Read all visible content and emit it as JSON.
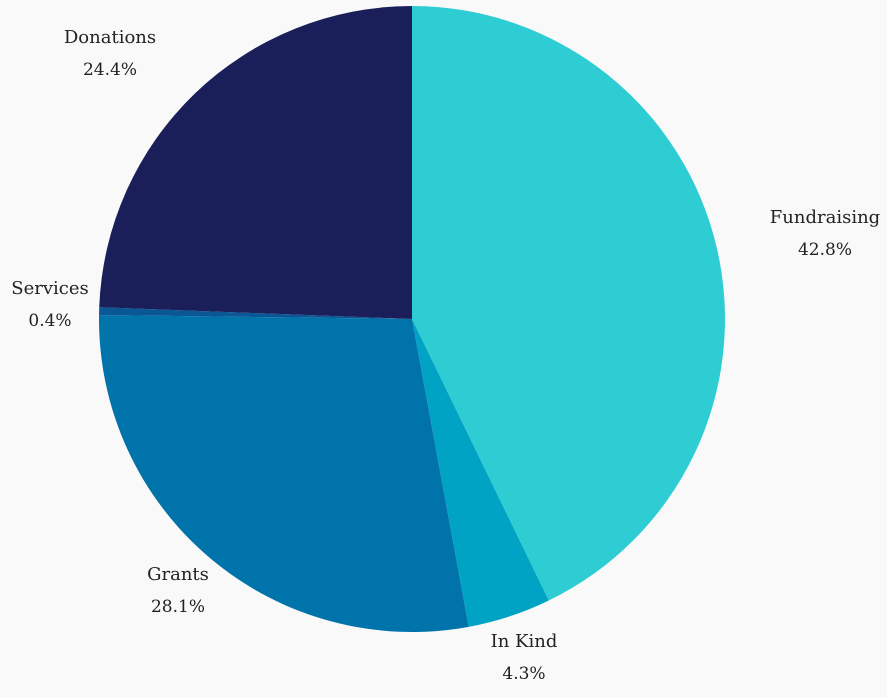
{
  "chart_data": {
    "type": "pie",
    "slices": [
      {
        "label": "Fundraising",
        "value": 42.8,
        "percent_label": "42.8%",
        "color": "#2ecdd4"
      },
      {
        "label": "In Kind",
        "value": 4.3,
        "percent_label": "4.3%",
        "color": "#00a3c4"
      },
      {
        "label": "Grants",
        "value": 28.1,
        "percent_label": "28.1%",
        "color": "#0073aa"
      },
      {
        "label": "Services",
        "value": 0.4,
        "percent_label": "0.4%",
        "color": "#0a5796"
      },
      {
        "label": "Donations",
        "value": 24.4,
        "percent_label": "24.4%",
        "color": "#1a1f5a"
      }
    ],
    "start_angle": "12 o'clock",
    "direction": "clockwise",
    "legend": "none"
  },
  "colors": {
    "background": "#f9f9f9",
    "text": "#222222"
  }
}
